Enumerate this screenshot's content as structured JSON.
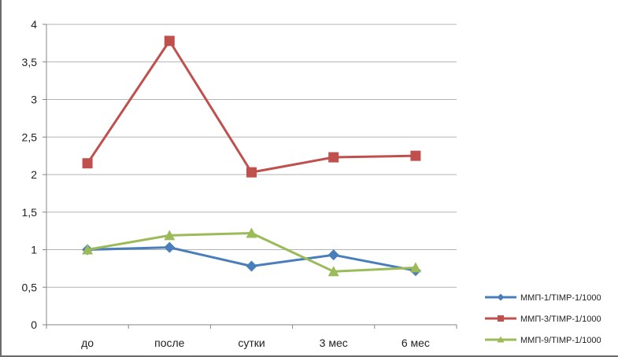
{
  "chart_data": {
    "type": "line",
    "categories": [
      "до",
      "после",
      "сутки",
      "3 мес",
      "6 мес"
    ],
    "series": [
      {
        "name": "ММП-1/TIMP-1/1000",
        "values": [
          1.0,
          1.03,
          0.78,
          0.93,
          0.72
        ],
        "color": "#4a7ebb",
        "marker": "diamond"
      },
      {
        "name": "ММП-3/TIMP-1/1000",
        "values": [
          2.15,
          3.78,
          2.03,
          2.23,
          2.25
        ],
        "color": "#c0504d",
        "marker": "square"
      },
      {
        "name": "ММП-9/TIMP-1/1000",
        "values": [
          1.0,
          1.19,
          1.22,
          0.71,
          0.76
        ],
        "color": "#9bbb59",
        "marker": "triangle"
      }
    ],
    "title": "",
    "xlabel": "",
    "ylabel": "",
    "ylim": [
      0,
      4
    ],
    "yticks": [
      0,
      0.5,
      1,
      1.5,
      2,
      2.5,
      3,
      3.5,
      4
    ],
    "ytick_labels": [
      "0",
      "0,5",
      "1",
      "1,5",
      "2",
      "2,5",
      "3",
      "3,5",
      "4"
    ],
    "grid": true,
    "legend": "bottom-right"
  }
}
